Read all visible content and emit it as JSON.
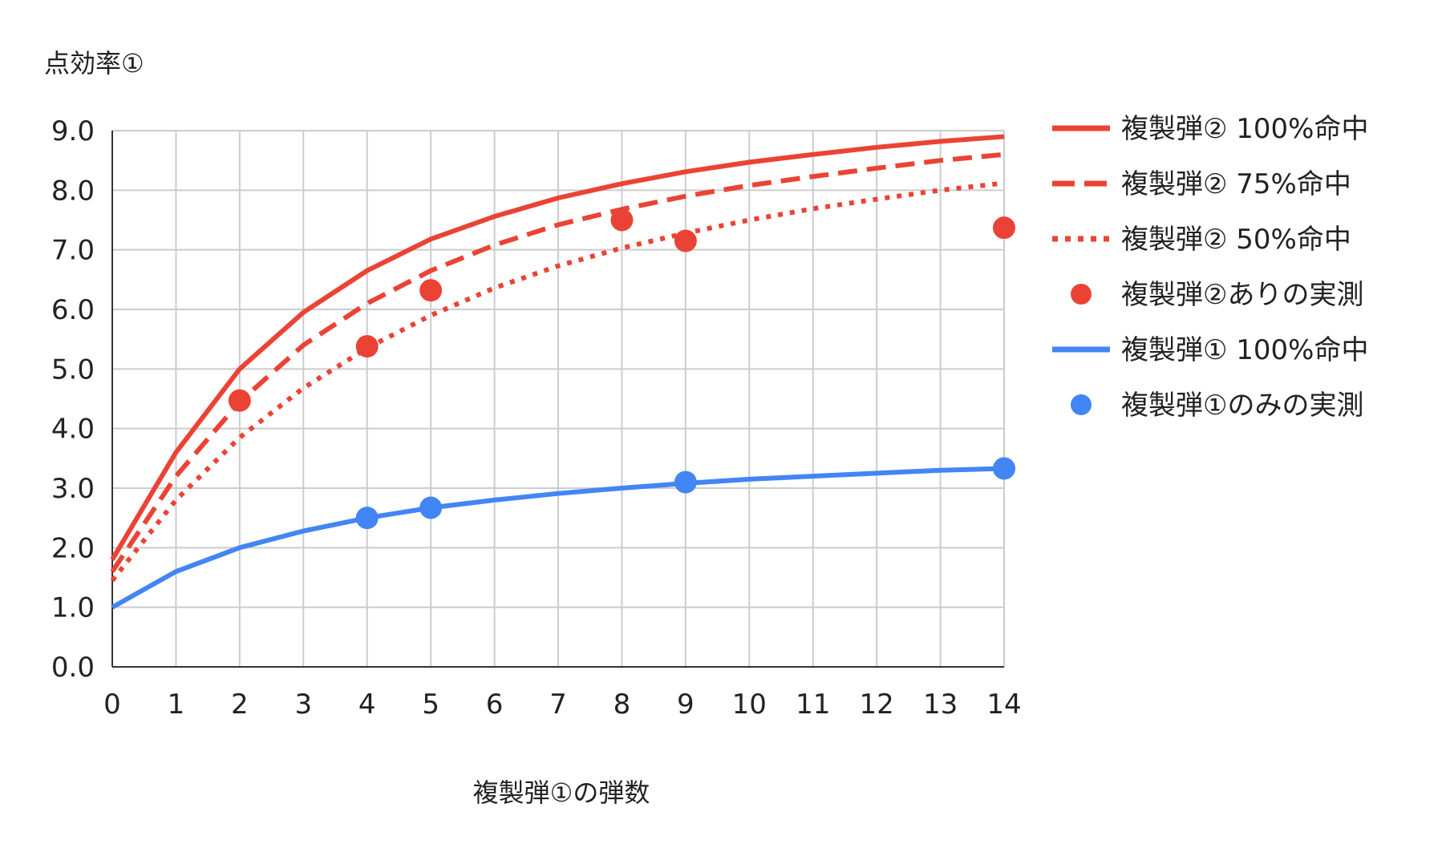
{
  "chart_data": {
    "type": "line",
    "title": "",
    "ylabel": "点効率①",
    "xlabel": "複製弾①の弾数",
    "x": [
      0,
      1,
      2,
      3,
      4,
      5,
      6,
      7,
      8,
      9,
      10,
      11,
      12,
      13,
      14
    ],
    "xticks": [
      "0",
      "1",
      "2",
      "3",
      "4",
      "5",
      "6",
      "7",
      "8",
      "9",
      "10",
      "11",
      "12",
      "13",
      "14"
    ],
    "xlim": [
      0,
      14
    ],
    "ylim": [
      0,
      9
    ],
    "yticks": [
      "0.0",
      "1.0",
      "2.0",
      "3.0",
      "4.0",
      "5.0",
      "6.0",
      "7.0",
      "8.0",
      "9.0"
    ],
    "grid": true,
    "legend_position": "right",
    "series": [
      {
        "name": "複製弾② 100%命中",
        "style": "solid",
        "color": "#ea4335",
        "x": [
          0,
          1,
          2,
          3,
          4,
          5,
          6,
          7,
          8,
          9,
          10,
          11,
          12,
          13,
          14
        ],
        "y": [
          1.8,
          3.6,
          5.0,
          5.95,
          6.65,
          7.18,
          7.56,
          7.87,
          8.11,
          8.31,
          8.47,
          8.6,
          8.72,
          8.82,
          8.9
        ]
      },
      {
        "name": "複製弾② 75%命中",
        "style": "dashed",
        "color": "#ea4335",
        "x": [
          0,
          1,
          2,
          3,
          4,
          5,
          6,
          7,
          8,
          9,
          10,
          11,
          12,
          13,
          14
        ],
        "y": [
          1.6,
          3.2,
          4.45,
          5.4,
          6.1,
          6.65,
          7.08,
          7.42,
          7.68,
          7.9,
          8.08,
          8.23,
          8.37,
          8.5,
          8.6
        ]
      },
      {
        "name": "複製弾② 50%命中",
        "style": "dotted",
        "color": "#ea4335",
        "x": [
          0,
          1,
          2,
          3,
          4,
          5,
          6,
          7,
          8,
          9,
          10,
          11,
          12,
          13,
          14
        ],
        "y": [
          1.45,
          2.8,
          3.85,
          4.68,
          5.35,
          5.9,
          6.36,
          6.73,
          7.03,
          7.28,
          7.5,
          7.69,
          7.85,
          8.0,
          8.12
        ]
      },
      {
        "name": "複製弾②ありの実測",
        "style": "marker",
        "color": "#ea4335",
        "x": [
          2,
          4,
          5,
          8,
          9,
          14
        ],
        "y": [
          4.47,
          5.38,
          6.32,
          7.5,
          7.15,
          7.37
        ]
      },
      {
        "name": "複製弾① 100%命中",
        "style": "solid",
        "color": "#4285f4",
        "x": [
          0,
          1,
          2,
          3,
          4,
          5,
          6,
          7,
          8,
          9,
          10,
          11,
          12,
          13,
          14
        ],
        "y": [
          1.0,
          1.6,
          2.0,
          2.28,
          2.5,
          2.67,
          2.8,
          2.91,
          3.0,
          3.08,
          3.15,
          3.2,
          3.25,
          3.3,
          3.33
        ]
      },
      {
        "name": "複製弾①のみの実測",
        "style": "marker",
        "color": "#4285f4",
        "x": [
          4,
          5,
          9,
          14
        ],
        "y": [
          2.5,
          2.67,
          3.1,
          3.33
        ]
      }
    ]
  }
}
